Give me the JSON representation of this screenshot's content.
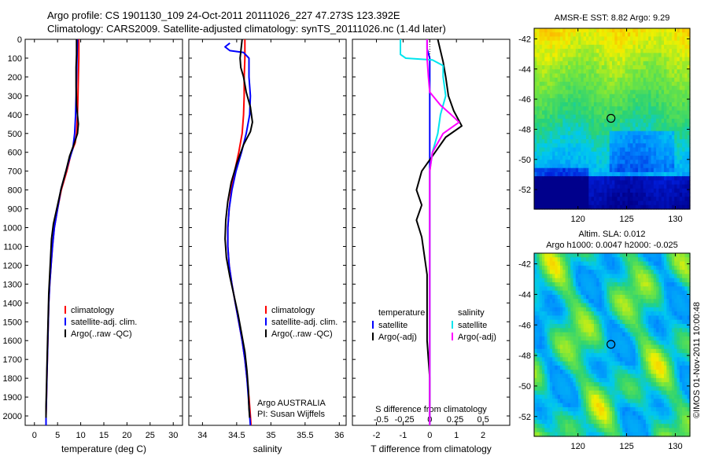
{
  "header": {
    "line1": "Argo profile: CS 1901130_109 24-Oct-2011 20111026_227 47.273S 123.392E",
    "line2": "Climatology: CARS2009. Satellite-adjusted climatology: synTS_20111026.nc (1.4d later)"
  },
  "depth_axis": {
    "ticks": [
      0,
      100,
      200,
      300,
      400,
      500,
      600,
      700,
      800,
      900,
      1000,
      1100,
      1200,
      1300,
      1400,
      1500,
      1600,
      1700,
      1800,
      1900,
      2000
    ],
    "range": [
      0,
      2050
    ],
    "reversed": true
  },
  "colors": {
    "climatology": "#ff0000",
    "satellite": "#0000ff",
    "argo": "#000000",
    "sal_satellite": "#00e5ee",
    "sal_argo": "#ff00ff"
  },
  "chart_data": [
    {
      "type": "line",
      "xlabel": "temperature (deg C)",
      "xlim": [
        -2,
        32
      ],
      "xticks": [
        0,
        5,
        10,
        15,
        20,
        25,
        30
      ],
      "legend": {
        "placement": "bottom-left",
        "entries": [
          "climatology",
          "satellite-adj. clim.",
          "Argo(..raw -QC)"
        ]
      },
      "series": [
        {
          "name": "climatology",
          "color": "#ff0000",
          "points": [
            [
              9.6,
              0
            ],
            [
              9.6,
              100
            ],
            [
              9.5,
              200
            ],
            [
              9.4,
              300
            ],
            [
              9.3,
              400
            ],
            [
              9.1,
              500
            ],
            [
              8.8,
              550
            ],
            [
              8.0,
              600
            ],
            [
              7.0,
              700
            ],
            [
              5.8,
              800
            ],
            [
              5.0,
              900
            ],
            [
              4.3,
              1000
            ],
            [
              3.9,
              1100
            ],
            [
              3.6,
              1200
            ],
            [
              3.3,
              1300
            ],
            [
              3.1,
              1400
            ],
            [
              3.0,
              1500
            ],
            [
              2.9,
              1600
            ],
            [
              2.8,
              1700
            ],
            [
              2.7,
              1800
            ],
            [
              2.6,
              1900
            ],
            [
              2.5,
              2000
            ],
            [
              2.5,
              2050
            ]
          ]
        },
        {
          "name": "satellite-adj. clim.",
          "color": "#0000ff",
          "points": [
            [
              9.3,
              0
            ],
            [
              9.2,
              100
            ],
            [
              9.1,
              200
            ],
            [
              9.0,
              300
            ],
            [
              8.9,
              400
            ],
            [
              8.7,
              500
            ],
            [
              8.3,
              580
            ],
            [
              7.4,
              650
            ],
            [
              6.6,
              720
            ],
            [
              5.7,
              800
            ],
            [
              5.0,
              900
            ],
            [
              4.3,
              1000
            ],
            [
              3.9,
              1100
            ],
            [
              3.6,
              1200
            ],
            [
              3.3,
              1300
            ],
            [
              3.1,
              1400
            ],
            [
              3.0,
              1500
            ],
            [
              2.9,
              1600
            ],
            [
              2.8,
              1700
            ],
            [
              2.7,
              1800
            ],
            [
              2.6,
              1900
            ],
            [
              2.5,
              2000
            ],
            [
              2.5,
              2050
            ]
          ]
        },
        {
          "name": "Argo(..raw -QC)",
          "color": "#000000",
          "points": [
            [
              9.1,
              0
            ],
            [
              9.1,
              80
            ],
            [
              9.0,
              150
            ],
            [
              9.0,
              250
            ],
            [
              9.1,
              350
            ],
            [
              9.5,
              450
            ],
            [
              9.3,
              500
            ],
            [
              8.5,
              560
            ],
            [
              7.6,
              620
            ],
            [
              6.8,
              700
            ],
            [
              5.8,
              790
            ],
            [
              5.0,
              880
            ],
            [
              4.1,
              980
            ],
            [
              3.7,
              1060
            ],
            [
              3.5,
              1150
            ],
            [
              3.3,
              1250
            ],
            [
              3.1,
              1350
            ],
            [
              3.0,
              1450
            ],
            [
              2.9,
              1550
            ],
            [
              2.8,
              1650
            ],
            [
              2.7,
              1750
            ],
            [
              2.6,
              1850
            ],
            [
              2.5,
              1950
            ],
            [
              2.5,
              2010
            ]
          ]
        }
      ]
    },
    {
      "type": "line",
      "xlabel": "salinity",
      "xlim": [
        33.8,
        36.1
      ],
      "xticks": [
        34,
        34.5,
        35,
        35.5,
        36
      ],
      "legend": {
        "placement": "bottom-left",
        "entries": [
          "climatology",
          "satellite-adj. clim.",
          "Argo(..raw -QC)"
        ]
      },
      "annotation": [
        "Argo AUSTRALIA",
        "PI: Susan Wijffels"
      ],
      "series": [
        {
          "name": "climatology",
          "color": "#ff0000",
          "points": [
            [
              34.62,
              0
            ],
            [
              34.62,
              100
            ],
            [
              34.61,
              200
            ],
            [
              34.61,
              300
            ],
            [
              34.6,
              400
            ],
            [
              34.58,
              500
            ],
            [
              34.53,
              600
            ],
            [
              34.47,
              700
            ],
            [
              34.42,
              800
            ],
            [
              34.39,
              900
            ],
            [
              34.37,
              1000
            ],
            [
              34.37,
              1100
            ],
            [
              34.39,
              1200
            ],
            [
              34.43,
              1300
            ],
            [
              34.48,
              1400
            ],
            [
              34.53,
              1500
            ],
            [
              34.58,
              1600
            ],
            [
              34.62,
              1700
            ],
            [
              34.65,
              1800
            ],
            [
              34.68,
              1900
            ],
            [
              34.7,
              2000
            ],
            [
              34.71,
              2050
            ]
          ]
        },
        {
          "name": "satellite-adj. clim.",
          "color": "#0000ff",
          "points": [
            [
              34.4,
              20
            ],
            [
              34.33,
              40
            ],
            [
              34.4,
              60
            ],
            [
              34.6,
              70
            ],
            [
              34.68,
              100
            ],
            [
              34.68,
              200
            ],
            [
              34.7,
              300
            ],
            [
              34.69,
              400
            ],
            [
              34.64,
              500
            ],
            [
              34.57,
              600
            ],
            [
              34.49,
              700
            ],
            [
              34.43,
              800
            ],
            [
              34.39,
              900
            ],
            [
              34.37,
              1000
            ],
            [
              34.37,
              1100
            ],
            [
              34.39,
              1200
            ],
            [
              34.43,
              1300
            ],
            [
              34.48,
              1400
            ],
            [
              34.53,
              1500
            ],
            [
              34.58,
              1600
            ],
            [
              34.62,
              1700
            ],
            [
              34.65,
              1800
            ],
            [
              34.67,
              1900
            ],
            [
              34.69,
              2000
            ],
            [
              34.7,
              2050
            ]
          ]
        },
        {
          "name": "Argo(..raw -QC)",
          "color": "#000000",
          "points": [
            [
              34.58,
              0
            ],
            [
              34.55,
              100
            ],
            [
              34.56,
              150
            ],
            [
              34.6,
              200
            ],
            [
              34.64,
              280
            ],
            [
              34.7,
              360
            ],
            [
              34.73,
              440
            ],
            [
              34.7,
              490
            ],
            [
              34.6,
              560
            ],
            [
              34.5,
              660
            ],
            [
              34.42,
              760
            ],
            [
              34.37,
              860
            ],
            [
              34.34,
              960
            ],
            [
              34.33,
              1060
            ],
            [
              34.35,
              1160
            ],
            [
              34.4,
              1260
            ],
            [
              34.46,
              1360
            ],
            [
              34.52,
              1460
            ],
            [
              34.57,
              1560
            ],
            [
              34.62,
              1660
            ],
            [
              34.65,
              1760
            ],
            [
              34.67,
              1860
            ],
            [
              34.68,
              1960
            ],
            [
              34.69,
              2010
            ]
          ]
        }
      ]
    },
    {
      "type": "line",
      "xlabel": "T difference from climatology",
      "x2label": "S difference from climatology",
      "xlim": [
        -2.9,
        3.0
      ],
      "xticks": [
        -2,
        -1,
        0,
        1,
        2
      ],
      "x2ticks": [
        "-0.5",
        "-0.25",
        "0",
        "0.25",
        "0.5"
      ],
      "legend": {
        "placement": "bottom",
        "temperature_title": "temperature",
        "salinity_title": "salinity",
        "entries": [
          "satellite",
          "Argo(-adj)",
          "satellite",
          "Argo(-adj)"
        ]
      },
      "series": [
        {
          "name": "temperature satellite",
          "color": "#0000ff",
          "points": [
            [
              -0.1,
              0
            ],
            [
              -0.1,
              50
            ],
            [
              0,
              100
            ],
            [
              0,
              200
            ],
            [
              0,
              400
            ],
            [
              0,
              600
            ],
            [
              0,
              800
            ],
            [
              0,
              1200
            ],
            [
              0,
              1600
            ],
            [
              0,
              2050
            ]
          ]
        },
        {
          "name": "temperature Argo(-adj)",
          "color": "#000000",
          "points": [
            [
              0.3,
              0
            ],
            [
              0.4,
              60
            ],
            [
              0.5,
              120
            ],
            [
              0.6,
              200
            ],
            [
              0.7,
              300
            ],
            [
              0.9,
              380
            ],
            [
              1.2,
              460
            ],
            [
              0.6,
              520
            ],
            [
              0.2,
              600
            ],
            [
              -0.3,
              700
            ],
            [
              -0.5,
              800
            ],
            [
              -0.3,
              880
            ],
            [
              -0.5,
              960
            ],
            [
              -0.3,
              1050
            ],
            [
              -0.2,
              1150
            ],
            [
              -0.1,
              1250
            ],
            [
              -0.1,
              1400
            ],
            [
              -0.1,
              1600
            ],
            [
              0,
              1800
            ],
            [
              0,
              2000
            ]
          ]
        },
        {
          "name": "salinity satellite",
          "color": "#00e5ee",
          "points": [
            [
              -1.1,
              0
            ],
            [
              -1.1,
              80
            ],
            [
              -0.9,
              100
            ],
            [
              0.1,
              110
            ],
            [
              0.5,
              140
            ],
            [
              0.5,
              200
            ],
            [
              0.6,
              300
            ],
            [
              0.4,
              400
            ],
            [
              0.3,
              500
            ],
            [
              0.1,
              600
            ],
            [
              0,
              700
            ],
            [
              0,
              900
            ],
            [
              0,
              1100
            ],
            [
              0,
              1300
            ],
            [
              0,
              1500
            ],
            [
              0,
              1700
            ],
            [
              0,
              1900
            ],
            [
              0,
              2050
            ]
          ]
        },
        {
          "name": "salinity Argo(-adj)",
          "color": "#ff00ff",
          "points": [
            [
              -0.1,
              0
            ],
            [
              -0.1,
              100
            ],
            [
              -0.05,
              200
            ],
            [
              0,
              280
            ],
            [
              0.4,
              350
            ],
            [
              0.8,
              400
            ],
            [
              1.1,
              440
            ],
            [
              0.5,
              500
            ],
            [
              0.1,
              600
            ],
            [
              0,
              700
            ],
            [
              0,
              900
            ],
            [
              0,
              1100
            ],
            [
              0,
              1300
            ],
            [
              0,
              1500
            ],
            [
              0,
              1700
            ],
            [
              0,
              1900
            ],
            [
              0,
              2050
            ]
          ]
        }
      ]
    }
  ],
  "maps": {
    "sst": {
      "title": "AMSR-E SST: 8.82 Argo: 9.29",
      "lat_ticks": [
        -42,
        -44,
        -46,
        -48,
        -50,
        -52
      ],
      "lon_ticks": [
        120,
        125,
        130
      ],
      "lat_range": [
        -53.3,
        -41.3
      ],
      "lon_range": [
        115.5,
        131.5
      ],
      "marker": [
        123.392,
        -47.273
      ]
    },
    "sla": {
      "title_line1": "Altim. SLA: 0.012",
      "title_line2": "Argo h1000: 0.0047 h2000: -0.025",
      "lat_ticks": [
        -42,
        -44,
        -46,
        -48,
        -50,
        -52
      ],
      "lon_ticks": [
        120,
        125,
        130
      ],
      "lat_range": [
        -53.3,
        -41.3
      ],
      "lon_range": [
        115.5,
        131.5
      ],
      "marker": [
        123.392,
        -47.273
      ]
    }
  },
  "credit": "©IMOS 01-Nov-2011 10:00:48"
}
